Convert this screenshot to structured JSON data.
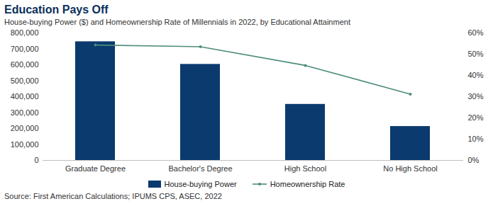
{
  "chart_data": {
    "type": "bar",
    "title": "Education Pays Off",
    "subtitle": "House-buying Power ($) and Homeownership Rate of Millennials in 2022, by Educational Attainment",
    "source": "Source: First American Calculations; IPUMS CPS, ASEC, 2022",
    "categories": [
      "Graduate Degree",
      "Bachelor's Degree",
      "High School",
      "No High School"
    ],
    "series": [
      {
        "name": "House-buying Power",
        "type": "bar",
        "color": "#0b3a6e",
        "values": [
          745000,
          603000,
          352000,
          213000
        ]
      },
      {
        "name": "Homeownership Rate",
        "type": "line",
        "color": "#4e8c7d",
        "marker": "circle",
        "axis": "y2",
        "values": [
          54.3,
          53.5,
          44.7,
          31.2
        ]
      }
    ],
    "ylim": [
      0,
      800000
    ],
    "yticks": [
      0,
      {
        "value": 100000,
        "label": "100,000"
      },
      {
        "value": 200000,
        "label": "200,000"
      },
      {
        "value": 300000,
        "label": "300,000"
      },
      {
        "value": 400000,
        "label": "400,000"
      },
      {
        "value": 500000,
        "label": "500,000"
      },
      {
        "value": 600000,
        "label": "600,000"
      },
      {
        "value": 700000,
        "label": "700,000"
      },
      {
        "value": 800000,
        "label": "800,000"
      }
    ],
    "y2lim": [
      0,
      60
    ],
    "y2ticks": [
      {
        "value": 0,
        "label": "0%"
      },
      {
        "value": 10,
        "label": "10%"
      },
      {
        "value": 20,
        "label": "20%"
      },
      {
        "value": 30,
        "label": "30%"
      },
      {
        "value": 40,
        "label": "40%"
      },
      {
        "value": 50,
        "label": "50%"
      },
      {
        "value": 60,
        "label": "60%"
      }
    ],
    "grid": false,
    "legend": "bottom"
  }
}
